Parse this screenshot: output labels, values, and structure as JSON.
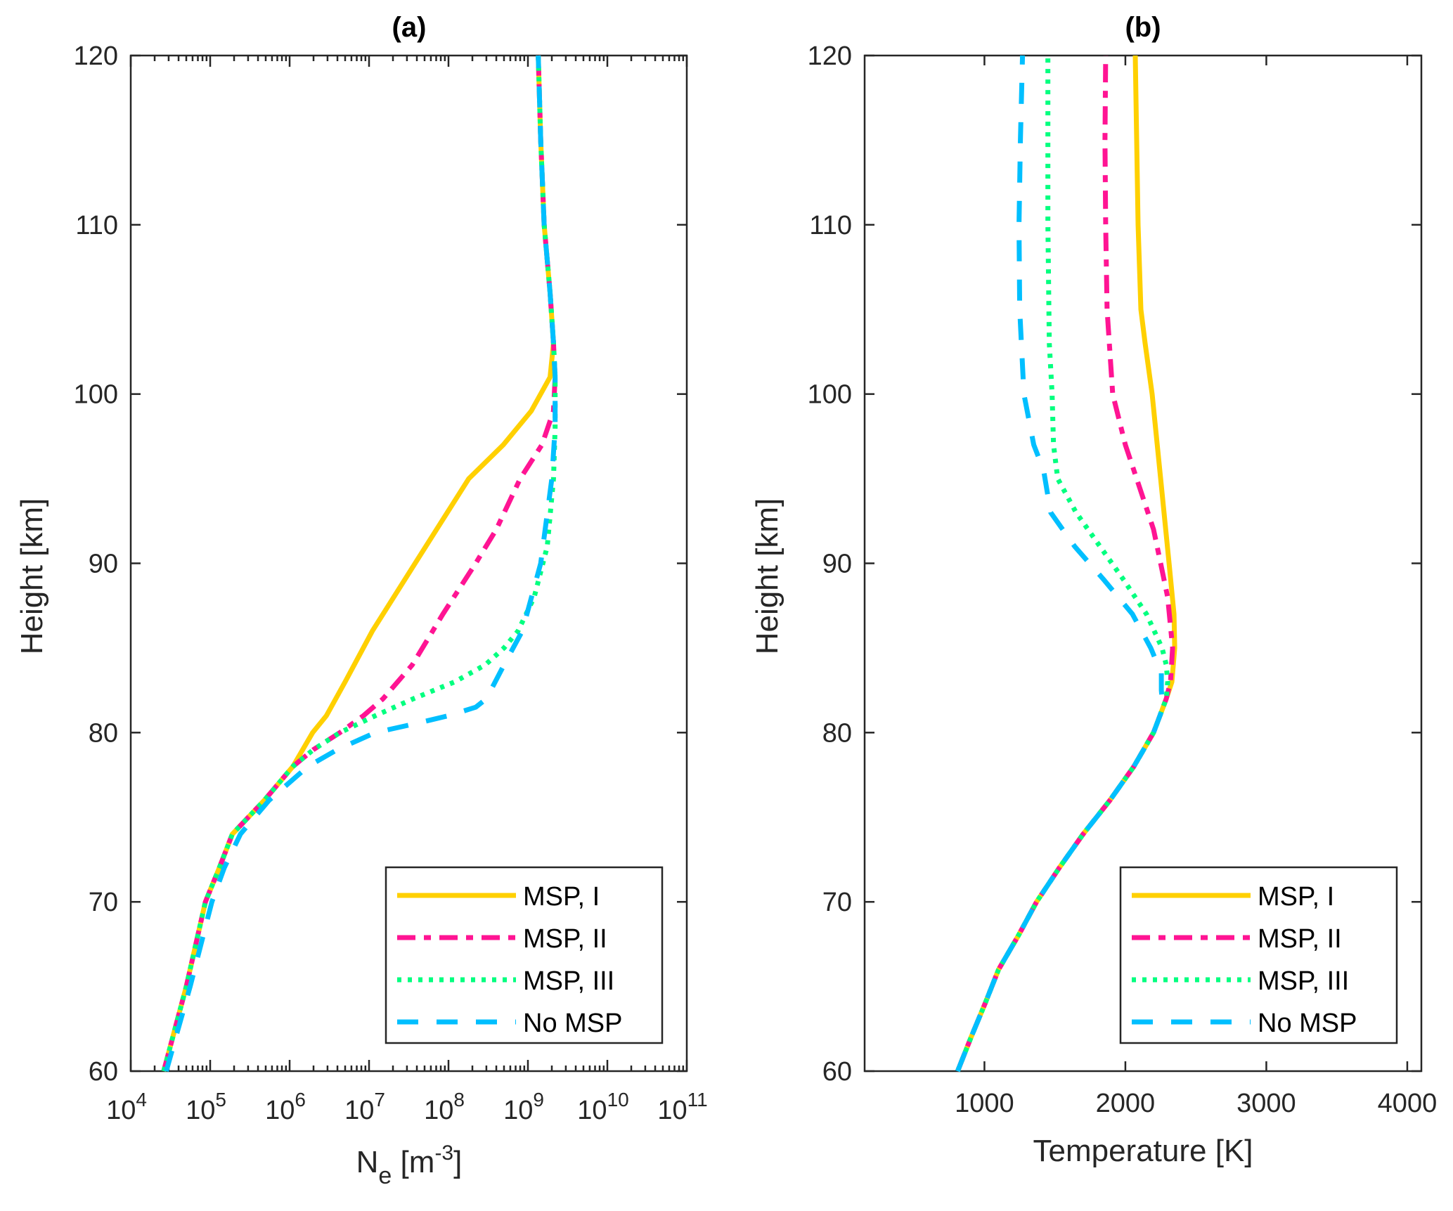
{
  "chart_data": [
    {
      "type": "line",
      "panel": "(a)",
      "title": "(a)",
      "xlabel": "N_e [m^-3]",
      "xlabel_main": "N",
      "xlabel_sub": "e",
      "xlabel_unit_pre": " [m",
      "xlabel_sup": "-3",
      "xlabel_unit_post": "]",
      "ylabel": "Height [km]",
      "xscale": "log",
      "xlim": [
        10000.0,
        100000000000.0
      ],
      "ylim": [
        60,
        120
      ],
      "xticks_exp": [
        4,
        5,
        6,
        7,
        8,
        9,
        10,
        11
      ],
      "xtick_base": "10",
      "yticks": [
        60,
        70,
        80,
        90,
        100,
        110,
        120
      ],
      "grid": false,
      "legend_position": "bottom-right",
      "series": [
        {
          "name": "MSP, I",
          "color": "#FFD000",
          "style": "solid",
          "points": [
            [
              60,
              26000.0
            ],
            [
              65,
              50000.0
            ],
            [
              70,
              87000.0
            ],
            [
              72,
              130000.0
            ],
            [
              74,
              190000.0
            ],
            [
              76,
              480000.0
            ],
            [
              78,
              1100000.0
            ],
            [
              80,
              1950000.0
            ],
            [
              81,
              2900000.0
            ],
            [
              83,
              5000000.0
            ],
            [
              86,
              11000000.0
            ],
            [
              90,
              38000000.0
            ],
            [
              95,
              180000000.0
            ],
            [
              97,
              490000000.0
            ],
            [
              99,
              1100000000.0
            ],
            [
              101,
              1900000000.0
            ],
            [
              103,
              2100000000.0
            ],
            [
              106,
              1900000000.0
            ],
            [
              110,
              1600000000.0
            ],
            [
              115,
              1450000000.0
            ],
            [
              120,
              1350000000.0
            ]
          ]
        },
        {
          "name": "MSP, II",
          "color": "#FF1493",
          "style": "dashdot",
          "points": [
            [
              60,
              26000.0
            ],
            [
              65,
              50000.0
            ],
            [
              70,
              87000.0
            ],
            [
              72,
              130000.0
            ],
            [
              74,
              190000.0
            ],
            [
              76,
              480000.0
            ],
            [
              78,
              1100000.0
            ],
            [
              79,
              2000000.0
            ],
            [
              80,
              4300000.0
            ],
            [
              81,
              8500000.0
            ],
            [
              82,
              15000000.0
            ],
            [
              84,
              35000000.0
            ],
            [
              87,
              85000000.0
            ],
            [
              90,
              220000000.0
            ],
            [
              92,
              400000000.0
            ],
            [
              95,
              800000000.0
            ],
            [
              97,
              1500000000.0
            ],
            [
              99,
              2100000000.0
            ],
            [
              101,
              2200000000.0
            ],
            [
              103,
              2100000000.0
            ],
            [
              106,
              1900000000.0
            ],
            [
              110,
              1600000000.0
            ],
            [
              115,
              1450000000.0
            ],
            [
              120,
              1350000000.0
            ]
          ]
        },
        {
          "name": "MSP, III",
          "color": "#00FF7F",
          "style": "dotted",
          "points": [
            [
              60,
              26000.0
            ],
            [
              65,
              50000.0
            ],
            [
              70,
              87000.0
            ],
            [
              72,
              130000.0
            ],
            [
              74,
              190000.0
            ],
            [
              76,
              480000.0
            ],
            [
              78,
              1100000.0
            ],
            [
              79,
              2000000.0
            ],
            [
              80,
              4300000.0
            ],
            [
              81,
              12000000.0
            ],
            [
              82,
              36000000.0
            ],
            [
              83,
              120000000.0
            ],
            [
              84,
              290000000.0
            ],
            [
              85,
              500000000.0
            ],
            [
              86,
              750000000.0
            ],
            [
              88,
              1200000000.0
            ],
            [
              91,
              1750000000.0
            ],
            [
              95,
              2100000000.0
            ],
            [
              98,
              2200000000.0
            ],
            [
              101,
              2200000000.0
            ],
            [
              103,
              2100000000.0
            ],
            [
              106,
              1900000000.0
            ],
            [
              110,
              1600000000.0
            ],
            [
              115,
              1450000000.0
            ],
            [
              120,
              1350000000.0
            ]
          ]
        },
        {
          "name": "No MSP",
          "color": "#00BFFF",
          "style": "dashed",
          "points": [
            [
              60,
              28000.0
            ],
            [
              65,
              56000.0
            ],
            [
              70,
              105000.0
            ],
            [
              72,
              150000.0
            ],
            [
              74,
              240000.0
            ],
            [
              76,
              550000.0
            ],
            [
              78,
              1700000.0
            ],
            [
              79,
              4000000.0
            ],
            [
              80,
              12000000.0
            ],
            [
              80.5,
              36000000.0
            ],
            [
              81,
              100000000.0
            ],
            [
              81.5,
              220000000.0
            ],
            [
              82,
              300000000.0
            ],
            [
              84,
              500000000.0
            ],
            [
              86,
              850000000.0
            ],
            [
              90,
              1450000000.0
            ],
            [
              95,
              2000000000.0
            ],
            [
              98,
              2200000000.0
            ],
            [
              101,
              2200000000.0
            ],
            [
              103,
              2100000000.0
            ],
            [
              106,
              1900000000.0
            ],
            [
              110,
              1600000000.0
            ],
            [
              115,
              1450000000.0
            ],
            [
              120,
              1350000000.0
            ]
          ]
        }
      ]
    },
    {
      "type": "line",
      "panel": "(b)",
      "title": "(b)",
      "xlabel": "Temperature [K]",
      "ylabel": "Height [km]",
      "xscale": "linear",
      "xlim": [
        150,
        4100
      ],
      "ylim": [
        60,
        120
      ],
      "xticks": [
        1000,
        2000,
        3000,
        4000
      ],
      "yticks": [
        60,
        70,
        80,
        90,
        100,
        110,
        120
      ],
      "grid": false,
      "legend_position": "bottom-right",
      "series": [
        {
          "name": "MSP, I",
          "color": "#FFD000",
          "style": "solid",
          "points": [
            [
              60,
              810
            ],
            [
              62,
              905
            ],
            [
              64,
              1005
            ],
            [
              66,
              1100
            ],
            [
              68,
              1240
            ],
            [
              70,
              1370
            ],
            [
              71,
              1450
            ],
            [
              72,
              1530
            ],
            [
              74,
              1700
            ],
            [
              76,
              1890
            ],
            [
              78,
              2060
            ],
            [
              80,
              2200
            ],
            [
              81,
              2245
            ],
            [
              82,
              2290
            ],
            [
              83,
              2330
            ],
            [
              85,
              2350
            ],
            [
              87,
              2345
            ],
            [
              90,
              2310
            ],
            [
              95,
              2250
            ],
            [
              100,
              2190
            ],
            [
              103,
              2140
            ],
            [
              105,
              2110
            ],
            [
              110,
              2090
            ],
            [
              115,
              2080
            ],
            [
              120,
              2070
            ]
          ]
        },
        {
          "name": "MSP, II",
          "color": "#FF1493",
          "style": "dashdot",
          "points": [
            [
              60,
              810
            ],
            [
              62,
              905
            ],
            [
              64,
              1005
            ],
            [
              66,
              1100
            ],
            [
              68,
              1240
            ],
            [
              70,
              1370
            ],
            [
              71,
              1450
            ],
            [
              72,
              1530
            ],
            [
              74,
              1700
            ],
            [
              76,
              1890
            ],
            [
              78,
              2060
            ],
            [
              80,
              2200
            ],
            [
              81,
              2245
            ],
            [
              82,
              2290
            ],
            [
              83,
              2320
            ],
            [
              85,
              2335
            ],
            [
              88,
              2300
            ],
            [
              90,
              2250
            ],
            [
              92,
              2200
            ],
            [
              95,
              2080
            ],
            [
              97,
              2000
            ],
            [
              100,
              1910
            ],
            [
              105,
              1870
            ],
            [
              110,
              1860
            ],
            [
              115,
              1855
            ],
            [
              120,
              1860
            ]
          ]
        },
        {
          "name": "MSP, III",
          "color": "#00FF7F",
          "style": "dotted",
          "points": [
            [
              60,
              810
            ],
            [
              62,
              905
            ],
            [
              64,
              1005
            ],
            [
              66,
              1100
            ],
            [
              68,
              1240
            ],
            [
              70,
              1370
            ],
            [
              71,
              1450
            ],
            [
              72,
              1530
            ],
            [
              74,
              1700
            ],
            [
              76,
              1890
            ],
            [
              78,
              2060
            ],
            [
              80,
              2200
            ],
            [
              81,
              2245
            ],
            [
              82,
              2290
            ],
            [
              83,
              2300
            ],
            [
              84,
              2290
            ],
            [
              85,
              2260
            ],
            [
              87,
              2150
            ],
            [
              89,
              1990
            ],
            [
              91,
              1820
            ],
            [
              93,
              1650
            ],
            [
              95,
              1520
            ],
            [
              97,
              1490
            ],
            [
              100,
              1480
            ],
            [
              103,
              1460
            ],
            [
              110,
              1450
            ],
            [
              115,
              1450
            ],
            [
              120,
              1450
            ]
          ]
        },
        {
          "name": "No MSP",
          "color": "#00BFFF",
          "style": "dashed",
          "points": [
            [
              60,
              810
            ],
            [
              62,
              905
            ],
            [
              64,
              1005
            ],
            [
              66,
              1100
            ],
            [
              68,
              1240
            ],
            [
              70,
              1370
            ],
            [
              71,
              1450
            ],
            [
              72,
              1530
            ],
            [
              74,
              1700
            ],
            [
              76,
              1890
            ],
            [
              78,
              2060
            ],
            [
              80,
              2200
            ],
            [
              81,
              2245
            ],
            [
              81.5,
              2265
            ],
            [
              82.5,
              2255
            ],
            [
              83.5,
              2255
            ],
            [
              85,
              2180
            ],
            [
              87,
              2050
            ],
            [
              89,
              1850
            ],
            [
              91,
              1640
            ],
            [
              93,
              1470
            ],
            [
              95,
              1430
            ],
            [
              95.5,
              1420
            ],
            [
              97,
              1350
            ],
            [
              100,
              1280
            ],
            [
              105,
              1250
            ],
            [
              110,
              1245
            ],
            [
              115,
              1255
            ],
            [
              120,
              1270
            ]
          ]
        }
      ]
    }
  ]
}
